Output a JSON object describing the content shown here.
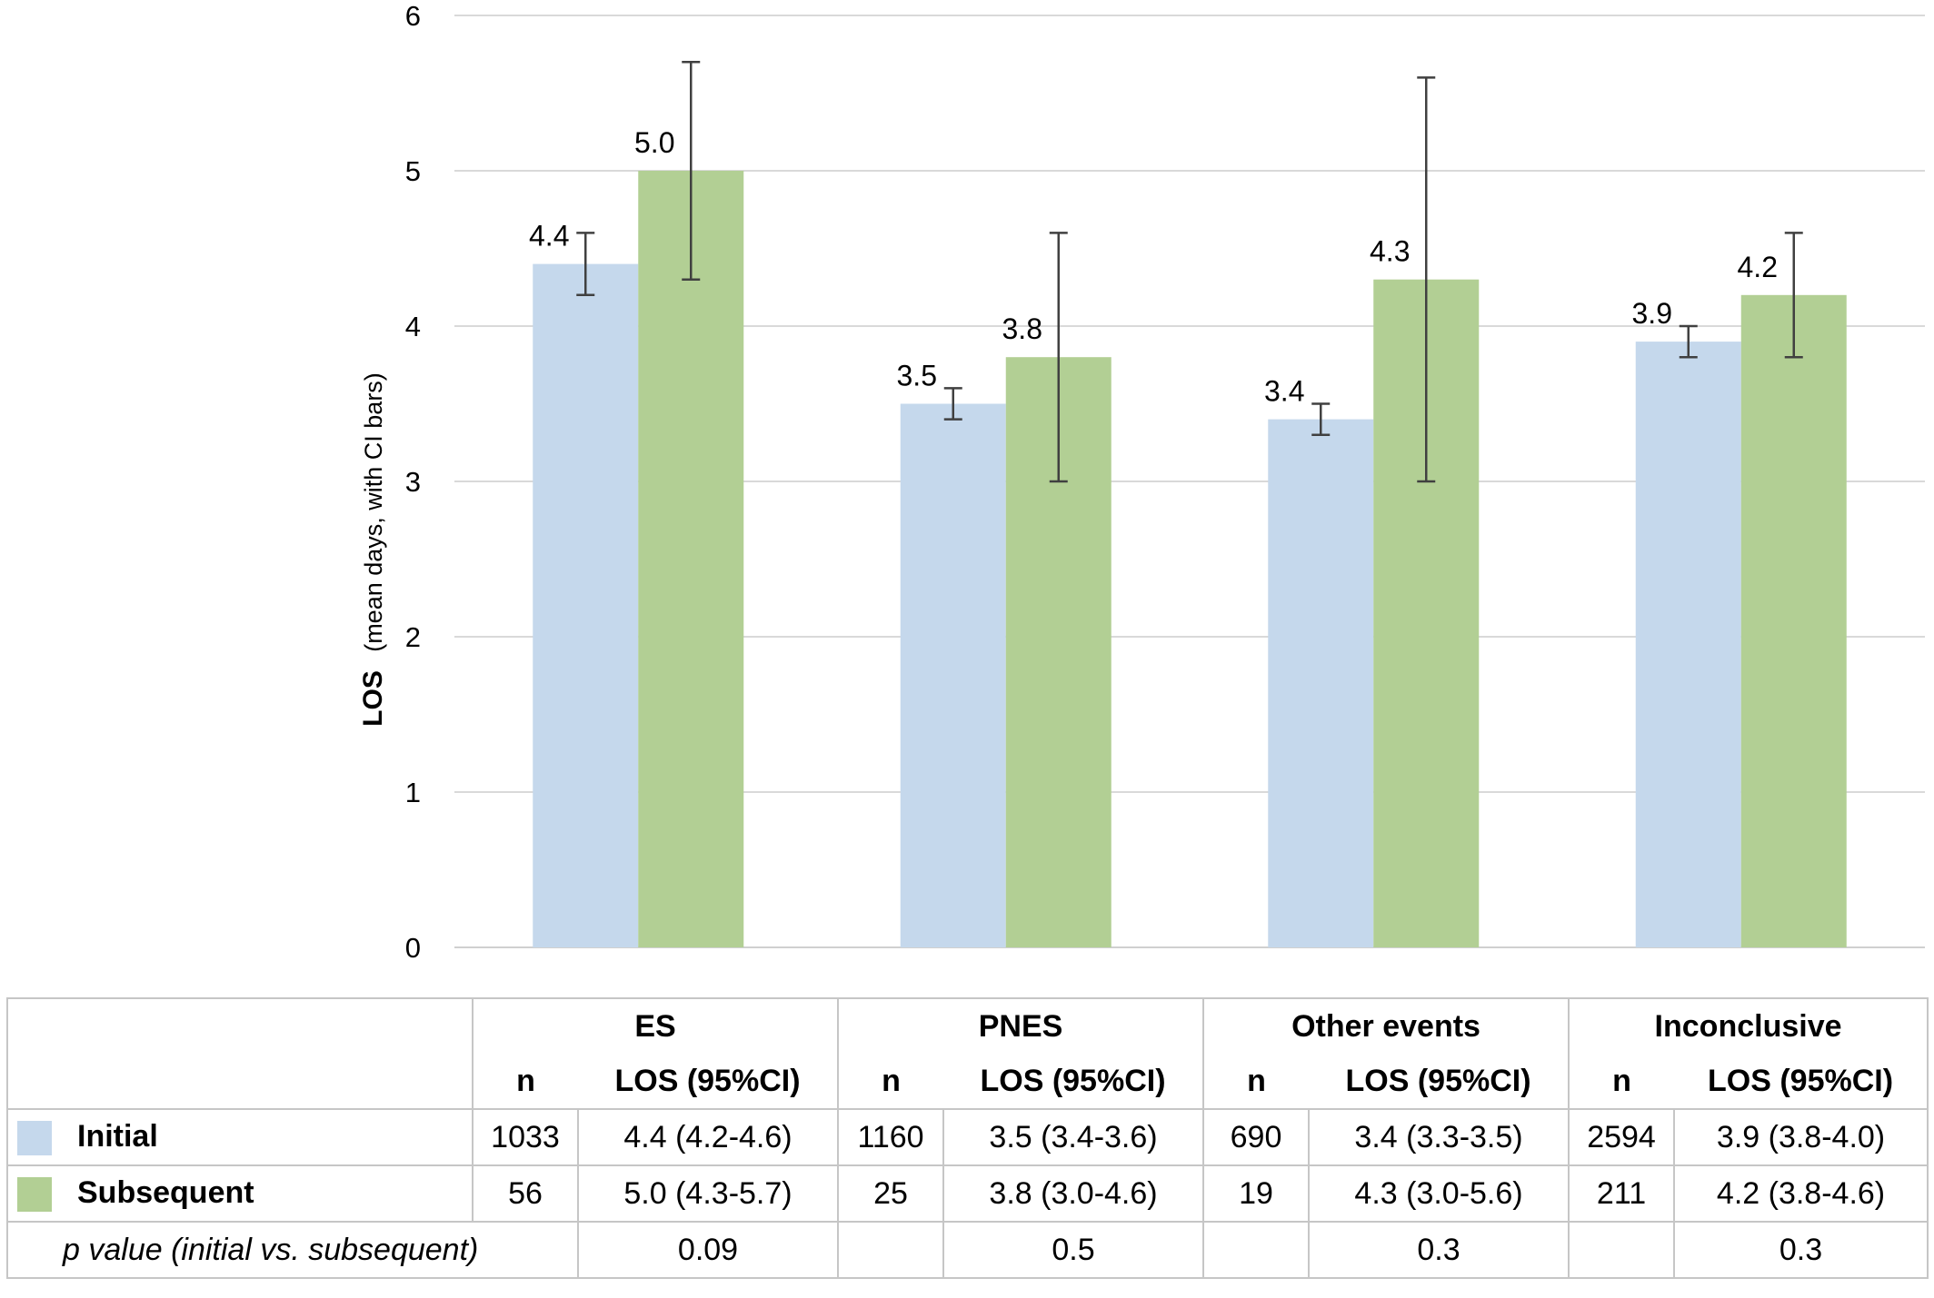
{
  "chart_data": {
    "type": "bar",
    "ylabel_bold": "LOS",
    "ylabel_rest": "(mean days, with CI bars)",
    "ylim": [
      0,
      6
    ],
    "yticks": [
      "0",
      "1",
      "2",
      "3",
      "4",
      "5",
      "6"
    ],
    "grid": true,
    "categories": [
      "ES",
      "PNES",
      "Other events",
      "Inconclusive"
    ],
    "series": [
      {
        "name": "Initial",
        "color": "#c5d8ec",
        "values": [
          4.4,
          3.5,
          3.4,
          3.9
        ],
        "labels": [
          "4.4",
          "3.5",
          "3.4",
          "3.9"
        ],
        "ci_low": [
          4.2,
          3.4,
          3.3,
          3.8
        ],
        "ci_high": [
          4.6,
          3.6,
          3.5,
          4.0
        ]
      },
      {
        "name": "Subsequent",
        "color": "#b2cf94",
        "values": [
          5.0,
          3.8,
          4.3,
          4.2
        ],
        "labels": [
          "5.0",
          "3.8",
          "4.3",
          "4.2"
        ],
        "ci_low": [
          4.3,
          3.0,
          3.0,
          3.8
        ],
        "ci_high": [
          5.7,
          4.6,
          5.6,
          4.6
        ]
      }
    ]
  },
  "table": {
    "groups": [
      "ES",
      "PNES",
      "Other events",
      "Inconclusive"
    ],
    "col_n": "n",
    "col_los": "LOS (95%CI)",
    "rows": [
      {
        "label": "Initial",
        "color": "#c5d8ec",
        "cells": [
          "1033",
          "4.4 (4.2-4.6)",
          "1160",
          "3.5 (3.4-3.6)",
          "690",
          "3.4 (3.3-3.5)",
          "2594",
          "3.9 (3.8-4.0)"
        ]
      },
      {
        "label": "Subsequent",
        "color": "#b2cf94",
        "cells": [
          "56",
          "5.0 (4.3-5.7)",
          "25",
          "3.8 (3.0-4.6)",
          "19",
          "4.3 (3.0-5.6)",
          "211",
          "4.2 (3.8-4.6)"
        ]
      }
    ],
    "p_label": "p value (initial vs. subsequent)",
    "p_values": [
      "0.09",
      "0.5",
      "0.3",
      "0.3"
    ]
  }
}
